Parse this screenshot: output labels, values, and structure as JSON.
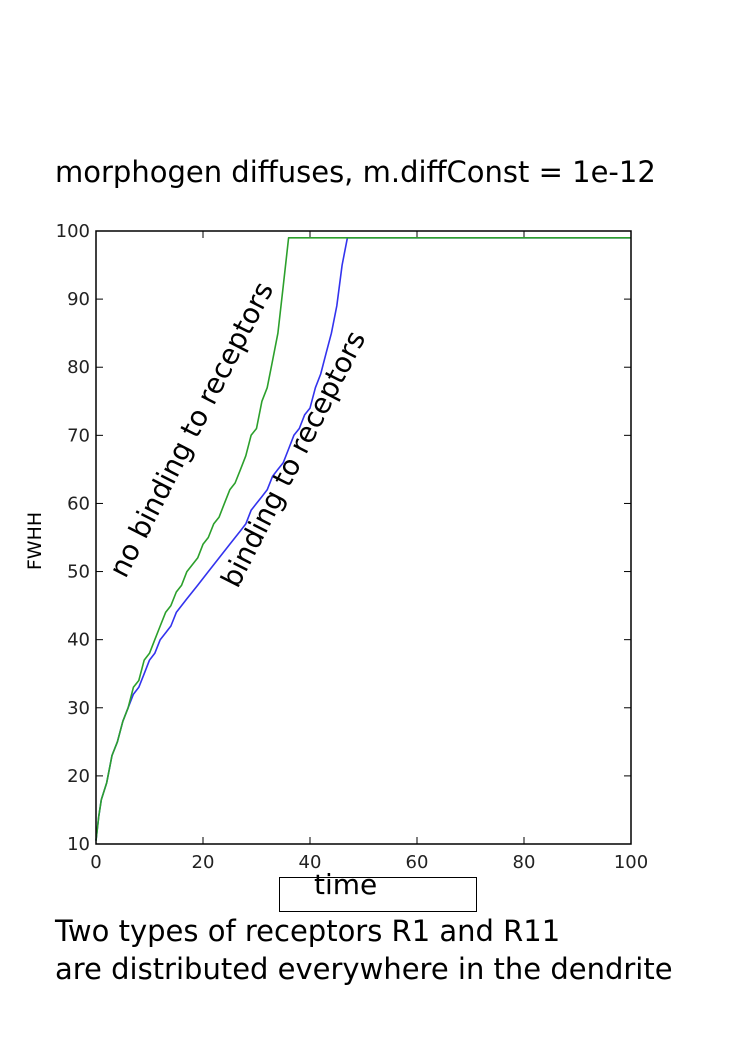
{
  "chart_data": {
    "type": "line",
    "title": "morphogen diffuses, m.diffConst = 1e-12",
    "xlabel": "time",
    "ylabel": "FWHH",
    "xlim": [
      0,
      100
    ],
    "ylim": [
      10,
      100
    ],
    "xticks": [
      "0",
      "20",
      "40",
      "60",
      "80",
      "100"
    ],
    "yticks": [
      "10",
      "20",
      "30",
      "40",
      "50",
      "60",
      "70",
      "80",
      "90",
      "100"
    ],
    "grid": false,
    "series": [
      {
        "color": "#3333ee",
        "x": [
          0,
          0.5,
          1,
          2,
          3,
          4,
          5,
          6,
          7,
          8,
          9,
          10,
          11,
          12,
          13,
          14,
          15,
          17,
          19,
          21,
          23,
          25,
          27,
          28,
          29,
          30,
          31,
          32,
          33,
          34,
          35,
          36,
          37,
          38,
          39,
          40,
          41,
          42,
          43,
          44,
          45,
          46,
          47,
          50,
          100
        ],
        "y": [
          10.5,
          14,
          16.5,
          19,
          23,
          25,
          28,
          30,
          32,
          33,
          35,
          37,
          38,
          40,
          41,
          42,
          44,
          46,
          48,
          50,
          52,
          54,
          56,
          57,
          59,
          60,
          61,
          62,
          64,
          65,
          66,
          68,
          70,
          71,
          73,
          74,
          77,
          79,
          82,
          85,
          89,
          95,
          99,
          99,
          99
        ]
      },
      {
        "color": "#2ca02c",
        "x": [
          0,
          0.5,
          1,
          2,
          3,
          4,
          5,
          6,
          7,
          8,
          9,
          10,
          11,
          12,
          13,
          14,
          15,
          16,
          17,
          18,
          19,
          20,
          21,
          22,
          23,
          24,
          25,
          26,
          27,
          28,
          29,
          30,
          31,
          32,
          33,
          34,
          35,
          36,
          40,
          100
        ],
        "y": [
          10.5,
          14,
          16.5,
          19,
          23,
          25,
          28,
          30,
          33,
          34,
          37,
          38,
          40,
          42,
          44,
          45,
          47,
          48,
          50,
          51,
          52,
          54,
          55,
          57,
          58,
          60,
          62,
          63,
          65,
          67,
          70,
          71,
          75,
          77,
          81,
          85,
          92,
          99,
          99,
          99
        ]
      }
    ],
    "annotations": [
      {
        "text": "no binding to receptors",
        "x": 6.5,
        "y": 48.5,
        "angle": -63
      },
      {
        "text": "binding to receptors",
        "x": 27.5,
        "y": 47,
        "angle": -63
      }
    ]
  },
  "caption": {
    "line1": "Two types of receptors R1 and R11",
    "line2": "are distributed everywhere in the dendrite"
  }
}
